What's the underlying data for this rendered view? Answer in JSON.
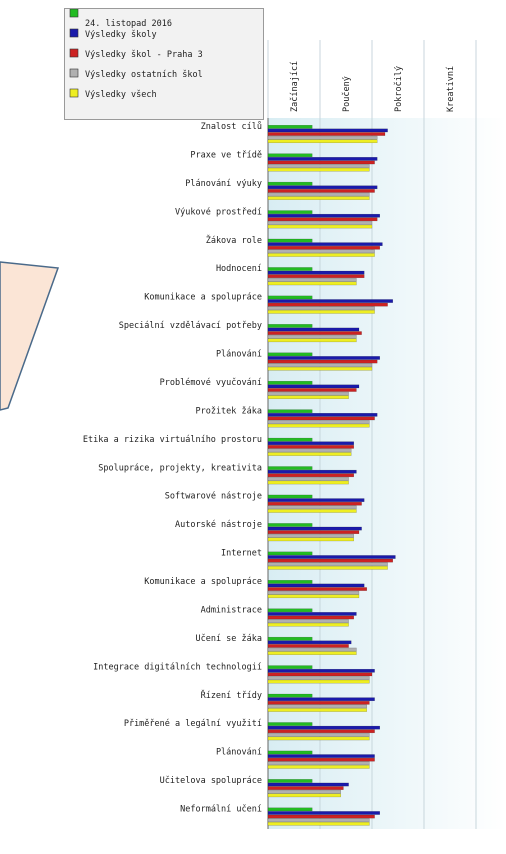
{
  "chart_data": {
    "type": "bar",
    "orientation": "horizontal",
    "xlim": [
      0,
      4
    ],
    "levels": [
      "Začínající",
      "Poučený",
      "Pokročilý",
      "Kreativní"
    ],
    "categories": [
      "Znalost cílů",
      "Praxe ve třídě",
      "Plánování výuky",
      "Výukové prostředí",
      "Žákova role",
      "Hodnocení",
      "Komunikace a spolupráce",
      "Speciální vzdělávací potřeby",
      "Plánování",
      "Problémové vyučování",
      "Prožitek žáka",
      "Etika a rizika virtuálního prostoru",
      "Spolupráce,  projekty, kreativita",
      "Softwarové  nástroje",
      "Autorské nástroje",
      "Internet",
      "Komunikace a spolupráce",
      "Administrace",
      "Učení se žáka",
      "Integrace digitálních technologií",
      "Řízení třídy",
      "Přiměřené a legální využití",
      "Plánování",
      "Učitelova spolupráce",
      "Neformální učení"
    ],
    "series": [
      {
        "name": "24. listopad 2016",
        "color": "#22bb22",
        "values": [
          0.85,
          0.85,
          0.85,
          0.85,
          0.85,
          0.85,
          0.85,
          0.85,
          0.85,
          0.85,
          0.85,
          0.85,
          0.85,
          0.85,
          0.85,
          0.85,
          0.85,
          0.85,
          0.85,
          0.85,
          0.85,
          0.85,
          0.85,
          0.85,
          0.85
        ]
      },
      {
        "name": "Výsledky školy",
        "color": "#1a1aaa",
        "values": [
          2.3,
          2.1,
          2.1,
          2.15,
          2.2,
          1.85,
          2.4,
          1.75,
          2.15,
          1.75,
          2.1,
          1.65,
          1.7,
          1.85,
          1.8,
          2.45,
          1.85,
          1.7,
          1.6,
          2.05,
          2.05,
          2.15,
          2.05,
          1.55,
          2.15
        ]
      },
      {
        "name": "Výsledky škol - Praha 3",
        "color": "#cc2222",
        "values": [
          2.25,
          2.05,
          2.05,
          2.1,
          2.15,
          1.85,
          2.3,
          1.8,
          2.1,
          1.7,
          2.05,
          1.65,
          1.65,
          1.8,
          1.75,
          2.4,
          1.9,
          1.65,
          1.55,
          2.0,
          1.95,
          2.05,
          2.05,
          1.45,
          2.05
        ]
      },
      {
        "name": "Výsledky ostatních škol",
        "color": "#b0b0b0",
        "values": [
          2.1,
          1.95,
          1.95,
          2.0,
          2.05,
          1.7,
          2.05,
          1.7,
          2.0,
          1.55,
          1.95,
          1.6,
          1.55,
          1.7,
          1.65,
          2.3,
          1.75,
          1.55,
          1.7,
          1.95,
          1.9,
          1.95,
          1.95,
          1.4,
          1.95
        ]
      },
      {
        "name": "Výsledky všech",
        "color": "#eeee22",
        "values": [
          2.1,
          1.95,
          1.95,
          2.0,
          2.05,
          1.7,
          2.05,
          1.7,
          2.0,
          1.55,
          1.95,
          1.6,
          1.55,
          1.7,
          1.65,
          2.3,
          1.75,
          1.55,
          1.7,
          1.95,
          1.9,
          1.95,
          1.95,
          1.4,
          1.95
        ]
      }
    ]
  },
  "colors": {
    "callout_fill": "#fbe5d6",
    "callout_stroke": "#4a6a8a",
    "plot_gradient_start": "#d8edf3",
    "plot_gradient_end": "#ffffff"
  }
}
